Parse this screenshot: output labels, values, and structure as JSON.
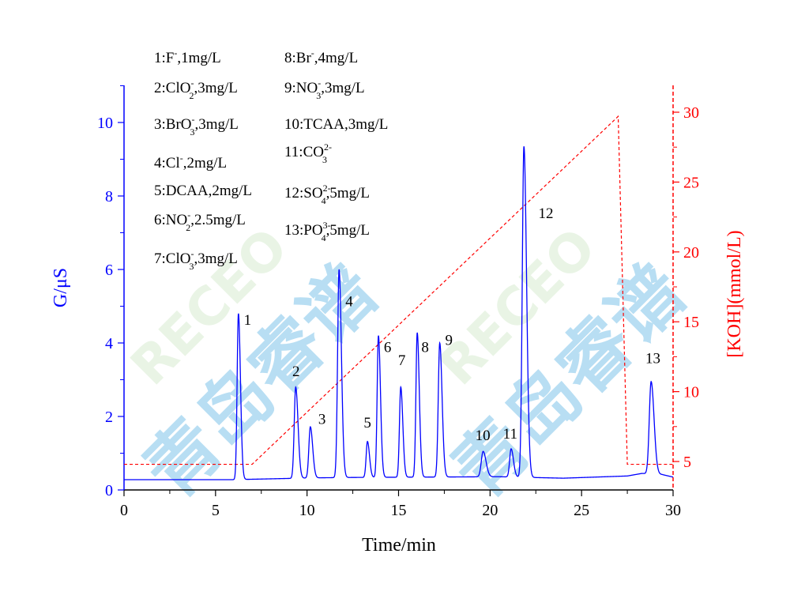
{
  "chart_data": {
    "type": "line",
    "xlabel": "Time/min",
    "ylabel": "G/μS",
    "y2label": "[KOH](mmol/L)",
    "xlim": [
      0,
      30
    ],
    "ylim": [
      0,
      10.5
    ],
    "y2lim": [
      3,
      31
    ],
    "xticks": [
      "0",
      "5",
      "10",
      "15",
      "20",
      "25",
      "30"
    ],
    "yticks": [
      "0",
      "2",
      "4",
      "6",
      "8",
      "10"
    ],
    "y2ticks": [
      "5",
      "10",
      "15",
      "20",
      "25",
      "30"
    ],
    "colors": {
      "primary": "#0000ff",
      "secondary": "#ff0000",
      "watermark": "#7ec4ea"
    },
    "legend_placement": "top-left",
    "legend": [
      {
        "id": "1",
        "num": "1:",
        "ion": "F",
        "sub": "",
        "sup": "-",
        "conc": ",1mg/L"
      },
      {
        "id": "2",
        "num": "2:",
        "ion": "ClO",
        "sub": "2",
        "sup": "-",
        "conc": ",3mg/L"
      },
      {
        "id": "3",
        "num": "3:",
        "ion": "BrO",
        "sub": "3",
        "sup": "-",
        "conc": ",3mg/L"
      },
      {
        "id": "4",
        "num": "4:",
        "ion": "Cl",
        "sub": "",
        "sup": "-",
        "conc": ",2mg/L"
      },
      {
        "id": "5",
        "num": "5:",
        "ion": "DCAA",
        "sub": "",
        "sup": "",
        "conc": ",2mg/L"
      },
      {
        "id": "6",
        "num": "6:",
        "ion": "NO",
        "sub": "2",
        "sup": "-",
        "conc": ",2.5mg/L"
      },
      {
        "id": "7",
        "num": "7:",
        "ion": "ClO",
        "sub": "3",
        "sup": "-",
        "conc": ",3mg/L"
      },
      {
        "id": "8",
        "num": "8:",
        "ion": "Br",
        "sub": "",
        "sup": "-",
        "conc": ",4mg/L"
      },
      {
        "id": "9",
        "num": "9:",
        "ion": "NO",
        "sub": "3",
        "sup": "-",
        "conc": ",3mg/L"
      },
      {
        "id": "10",
        "num": "10:",
        "ion": "TCAA",
        "sub": "",
        "sup": "",
        "conc": ",3mg/L"
      },
      {
        "id": "11",
        "num": "11:",
        "ion": "CO",
        "sub": "3",
        "sup": "2-",
        "conc": ""
      },
      {
        "id": "12",
        "num": "12:",
        "ion": "SO",
        "sub": "4",
        "sup": "2-",
        "conc": ",5mg/L"
      },
      {
        "id": "13",
        "num": "13:",
        "ion": "PO",
        "sub": "4",
        "sup": "3-",
        "conc": ",5mg/L"
      }
    ],
    "series": [
      {
        "axis": "left",
        "style": "solid",
        "baseline": [
          [
            0,
            0.28
          ],
          [
            6.0,
            0.28
          ],
          [
            10.5,
            0.33
          ],
          [
            12.5,
            0.34
          ],
          [
            20.5,
            0.36
          ],
          [
            24.0,
            0.32
          ],
          [
            27.5,
            0.38
          ],
          [
            28.3,
            0.45
          ],
          [
            29.4,
            0.42
          ],
          [
            30.0,
            0.35
          ]
        ],
        "peaks": [
          {
            "label": "1",
            "x": 6.25,
            "y": 4.8,
            "w": 0.07
          },
          {
            "label": "2",
            "x": 9.38,
            "y": 2.8,
            "w": 0.08
          },
          {
            "label": "3",
            "x": 10.18,
            "y": 1.72,
            "w": 0.08
          },
          {
            "label": "4",
            "x": 11.75,
            "y": 6.0,
            "w": 0.08
          },
          {
            "label": "5",
            "x": 13.3,
            "y": 1.32,
            "w": 0.07
          },
          {
            "label": "6",
            "x": 13.9,
            "y": 4.2,
            "w": 0.07
          },
          {
            "label": "7",
            "x": 15.12,
            "y": 2.8,
            "w": 0.07
          },
          {
            "label": "8",
            "x": 16.02,
            "y": 4.28,
            "w": 0.07
          },
          {
            "label": "9",
            "x": 17.25,
            "y": 4.0,
            "w": 0.08
          },
          {
            "label": "10",
            "x": 19.62,
            "y": 1.05,
            "w": 0.1
          },
          {
            "label": "11",
            "x": 21.15,
            "y": 1.12,
            "w": 0.08
          },
          {
            "label": "12",
            "x": 21.85,
            "y": 9.35,
            "w": 0.09
          },
          {
            "label": "13",
            "x": 28.8,
            "y": 2.95,
            "w": 0.1
          }
        ]
      },
      {
        "axis": "right",
        "style": "dashed",
        "x": [
          0,
          7.0,
          27.0,
          27.5,
          30
        ],
        "y": [
          4.8,
          4.8,
          29.7,
          4.8,
          4.8
        ]
      }
    ],
    "peak_labels": [
      {
        "text": "1",
        "x": 6.75,
        "y": 4.5
      },
      {
        "text": "2",
        "x": 9.4,
        "y": 3.1
      },
      {
        "text": "3",
        "x": 10.82,
        "y": 1.8
      },
      {
        "text": "4",
        "x": 12.3,
        "y": 5.0
      },
      {
        "text": "5",
        "x": 13.3,
        "y": 1.7
      },
      {
        "text": "6",
        "x": 14.4,
        "y": 3.75
      },
      {
        "text": "7",
        "x": 15.18,
        "y": 3.4
      },
      {
        "text": "8",
        "x": 16.45,
        "y": 3.75
      },
      {
        "text": "9",
        "x": 17.75,
        "y": 3.95
      },
      {
        "text": "10",
        "x": 19.6,
        "y": 1.35
      },
      {
        "text": "11",
        "x": 21.1,
        "y": 1.4
      },
      {
        "text": "12",
        "x": 23.05,
        "y": 7.4
      },
      {
        "text": "13",
        "x": 28.9,
        "y": 3.45
      }
    ],
    "watermark": {
      "latin": "RECEO",
      "cjk": "青岛睿谱"
    }
  }
}
